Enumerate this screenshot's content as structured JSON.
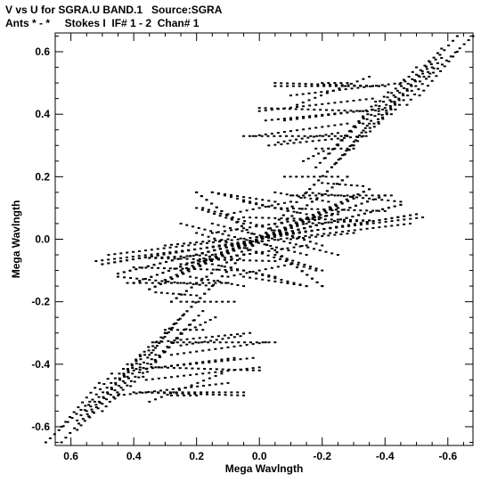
{
  "chart_data": {
    "type": "scatter",
    "title_line1": "V vs U for SGRA.U BAND.1   Source:SGRA",
    "title_line2": "Ants * - *     Stokes I  IF# 1 - 2  Chan# 1",
    "xlabel": "Mega Wavlngth",
    "ylabel": "Mega Wavlngth",
    "xlim": [
      0.65,
      -0.68
    ],
    "ylim": [
      -0.66,
      0.66
    ],
    "x_ticks": [
      0.6,
      0.4,
      0.2,
      0.0,
      -0.2,
      -0.4,
      -0.6
    ],
    "x_tick_labels": [
      "0.6",
      "0.4",
      "0.2",
      "0.0",
      "-0.2",
      "-0.4",
      "-0.6"
    ],
    "y_ticks": [
      0.6,
      0.4,
      0.2,
      0.0,
      -0.2,
      -0.4,
      -0.6
    ],
    "y_tick_labels": [
      "0.6",
      "0.4",
      "0.2",
      "0.0",
      "-0.2",
      "-0.4",
      "-0.6"
    ],
    "grid": false,
    "marker_color": "#000000",
    "series": [
      {
        "tracks": [
          {
            "x0": 0.63,
            "y0": -0.65,
            "x1": 0.52,
            "y1": -0.53
          },
          {
            "x0": 0.58,
            "y0": -0.61,
            "x1": 0.47,
            "y1": -0.48
          },
          {
            "x0": 0.54,
            "y0": -0.57,
            "x1": 0.42,
            "y1": -0.44
          },
          {
            "x0": 0.5,
            "y0": -0.55,
            "x1": 0.38,
            "y1": -0.4
          },
          {
            "x0": 0.46,
            "y0": -0.51,
            "x1": 0.33,
            "y1": -0.37
          },
          {
            "x0": 0.41,
            "y0": -0.47,
            "x1": 0.28,
            "y1": -0.33
          },
          {
            "x0": 0.37,
            "y0": -0.44,
            "x1": 0.25,
            "y1": -0.3
          },
          {
            "x0": 0.33,
            "y0": -0.39,
            "x1": 0.21,
            "y1": -0.26
          },
          {
            "x0": 0.3,
            "y0": -0.36,
            "x1": 0.18,
            "y1": -0.23
          },
          {
            "x0": 0.4,
            "y0": -0.49,
            "x1": 0.05,
            "y1": -0.49
          },
          {
            "x0": 0.36,
            "y0": -0.45,
            "x1": -0.0,
            "y1": -0.41
          },
          {
            "x0": 0.32,
            "y0": -0.41,
            "x1": 0.02,
            "y1": -0.38
          },
          {
            "x0": 0.28,
            "y0": -0.37,
            "x1": -0.02,
            "y1": -0.33
          },
          {
            "x0": 0.25,
            "y0": -0.34,
            "x1": 0.06,
            "y1": -0.31
          },
          {
            "x0": 0.35,
            "y0": -0.52,
            "x1": 0.12,
            "y1": -0.43
          },
          {
            "x0": 0.22,
            "y0": -0.29,
            "x1": 0.14,
            "y1": -0.25
          },
          {
            "x0": -0.68,
            "y0": 0.65,
            "x1": -0.54,
            "y1": 0.52
          },
          {
            "x0": -0.63,
            "y0": 0.6,
            "x1": -0.51,
            "y1": 0.46
          },
          {
            "x0": -0.58,
            "y0": 0.58,
            "x1": -0.47,
            "y1": 0.43
          },
          {
            "x0": -0.55,
            "y0": 0.55,
            "x1": -0.42,
            "y1": 0.4
          },
          {
            "x0": -0.51,
            "y0": 0.52,
            "x1": -0.38,
            "y1": 0.37
          },
          {
            "x0": -0.47,
            "y0": 0.48,
            "x1": -0.34,
            "y1": 0.33
          },
          {
            "x0": -0.43,
            "y0": 0.44,
            "x1": -0.3,
            "y1": 0.3
          },
          {
            "x0": -0.38,
            "y0": 0.41,
            "x1": -0.27,
            "y1": 0.27
          },
          {
            "x0": -0.35,
            "y0": 0.37,
            "x1": -0.24,
            "y1": 0.24
          },
          {
            "x0": -0.05,
            "y0": 0.5,
            "x1": -0.38,
            "y1": 0.49
          },
          {
            "x0": -0.1,
            "y0": 0.46,
            "x1": -0.45,
            "y1": 0.5
          },
          {
            "x0": 0.0,
            "y0": 0.42,
            "x1": -0.33,
            "y1": 0.41
          },
          {
            "x0": -0.08,
            "y0": 0.38,
            "x1": -0.4,
            "y1": 0.42
          },
          {
            "x0": 0.05,
            "y0": 0.33,
            "x1": -0.28,
            "y1": 0.33
          },
          {
            "x0": -0.03,
            "y0": 0.3,
            "x1": -0.33,
            "y1": 0.33
          },
          {
            "x0": -0.18,
            "y0": 0.29,
            "x1": -0.3,
            "y1": 0.29
          },
          {
            "x0": -0.2,
            "y0": 0.5,
            "x1": -0.28,
            "y1": 0.5
          },
          {
            "x0": 0.5,
            "y0": -0.08,
            "x1": -0.5,
            "y1": 0.08
          },
          {
            "x0": 0.45,
            "y0": -0.11,
            "x1": -0.45,
            "y1": 0.11
          },
          {
            "x0": 0.4,
            "y0": -0.14,
            "x1": -0.4,
            "y1": 0.14
          },
          {
            "x0": 0.35,
            "y0": -0.16,
            "x1": -0.35,
            "y1": 0.16
          },
          {
            "x0": 0.3,
            "y0": -0.13,
            "x1": -0.3,
            "y1": 0.13
          },
          {
            "x0": 0.25,
            "y0": -0.1,
            "x1": -0.25,
            "y1": 0.1
          },
          {
            "x0": 0.48,
            "y0": -0.05,
            "x1": -0.52,
            "y1": 0.07
          },
          {
            "x0": 0.3,
            "y0": -0.3,
            "x1": -0.3,
            "y1": 0.3
          },
          {
            "x0": 0.28,
            "y0": -0.2,
            "x1": -0.28,
            "y1": 0.2
          },
          {
            "x0": 0.2,
            "y0": 0.15,
            "x1": -0.2,
            "y1": -0.15
          },
          {
            "x0": 0.18,
            "y0": 0.1,
            "x1": -0.2,
            "y1": -0.02
          },
          {
            "x0": 0.25,
            "y0": 0.05,
            "x1": -0.15,
            "y1": -0.05
          },
          {
            "x0": 0.2,
            "y0": -0.05,
            "x1": -0.2,
            "y1": 0.05
          },
          {
            "x0": 0.15,
            "y0": -0.08,
            "x1": -0.05,
            "y1": -0.12
          },
          {
            "x0": 0.05,
            "y0": -0.1,
            "x1": -0.15,
            "y1": -0.15
          },
          {
            "x0": -0.05,
            "y0": -0.05,
            "x1": -0.2,
            "y1": -0.1
          },
          {
            "x0": 0.1,
            "y0": 0.08,
            "x1": -0.1,
            "y1": 0.12
          },
          {
            "x0": 0.15,
            "y0": 0.02,
            "x1": -0.25,
            "y1": 0.08
          },
          {
            "x0": 0.05,
            "y0": 0.07,
            "x1": -0.35,
            "y1": 0.06
          },
          {
            "x0": -0.1,
            "y0": 0.14,
            "x1": -0.42,
            "y1": 0.14
          },
          {
            "x0": -0.05,
            "y0": 0.1,
            "x1": -0.4,
            "y1": 0.09
          },
          {
            "x0": -0.15,
            "y0": 0.15,
            "x1": -0.45,
            "y1": 0.12
          },
          {
            "x0": -0.2,
            "y0": 0.18,
            "x1": -0.33,
            "y1": 0.17
          },
          {
            "x0": -0.08,
            "y0": 0.2,
            "x1": -0.25,
            "y1": 0.2
          },
          {
            "x0": 0.15,
            "y0": 0.15,
            "x1": -0.05,
            "y1": 0.12
          },
          {
            "x0": 0.22,
            "y0": -0.12,
            "x1": 0.05,
            "y1": -0.15
          },
          {
            "x0": 0.35,
            "y0": -0.06,
            "x1": 0.15,
            "y1": -0.05
          },
          {
            "x0": 0.3,
            "y0": -0.02,
            "x1": 0.1,
            "y1": 0.0
          }
        ]
      }
    ]
  }
}
